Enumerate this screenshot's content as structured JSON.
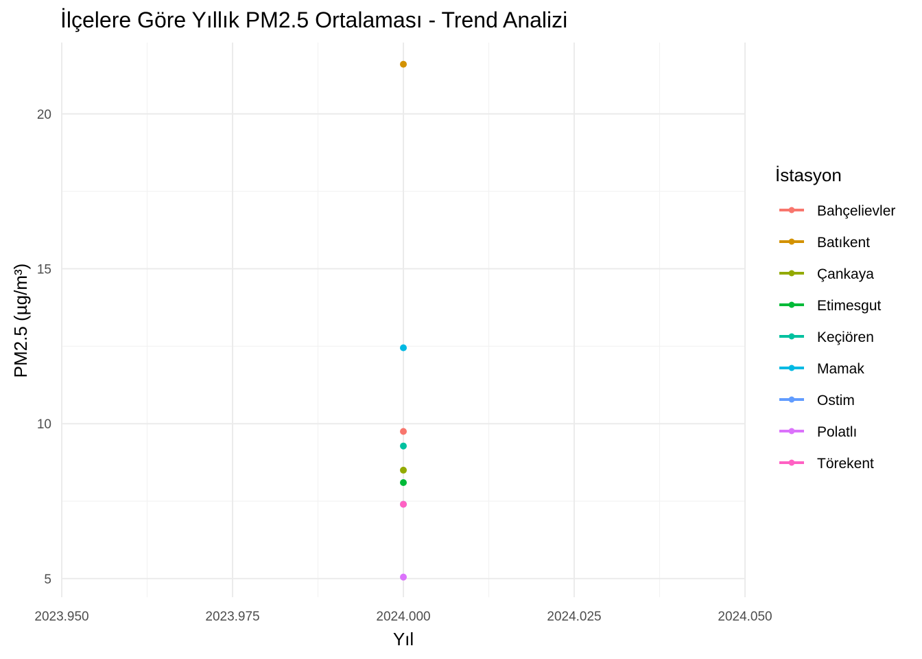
{
  "chart_data": {
    "type": "scatter",
    "title": "İlçelere Göre Yıllık PM2.5 Ortalaması - Trend Analizi",
    "xlabel": "Yıl",
    "ylabel": "PM2.5 (µg/m³)",
    "xlim": [
      2023.95,
      2024.05
    ],
    "ylim": [
      4.4,
      22.3
    ],
    "x_ticks": [
      "2023.950",
      "2023.975",
      "2024.000",
      "2024.025",
      "2024.050"
    ],
    "y_ticks": [
      "5",
      "10",
      "15",
      "20"
    ],
    "grid": true,
    "legend_title": "İstasyon",
    "legend_position": "right",
    "series": [
      {
        "name": "Bahçelievler",
        "color": "#F8766D",
        "x": [
          2024.0
        ],
        "y": [
          9.75
        ]
      },
      {
        "name": "Batıkent",
        "color": "#D39200",
        "x": [
          2024.0
        ],
        "y": [
          21.6
        ]
      },
      {
        "name": "Çankaya",
        "color": "#93AA00",
        "x": [
          2024.0
        ],
        "y": [
          8.5
        ]
      },
      {
        "name": "Etimesgut",
        "color": "#00BA38",
        "x": [
          2024.0
        ],
        "y": [
          8.1
        ]
      },
      {
        "name": "Keçiören",
        "color": "#00C19F",
        "x": [
          2024.0
        ],
        "y": [
          9.28
        ]
      },
      {
        "name": "Mamak",
        "color": "#00B9E3",
        "x": [
          2024.0
        ],
        "y": [
          12.45
        ]
      },
      {
        "name": "Ostim",
        "color": "#619CFF",
        "x": [
          2024.0
        ],
        "y": [
          7.4
        ]
      },
      {
        "name": "Polatlı",
        "color": "#DB72FB",
        "x": [
          2024.0
        ],
        "y": [
          5.05
        ]
      },
      {
        "name": "Törekent",
        "color": "#FF61C3",
        "x": [
          2024.0
        ],
        "y": [
          7.4
        ]
      }
    ]
  }
}
